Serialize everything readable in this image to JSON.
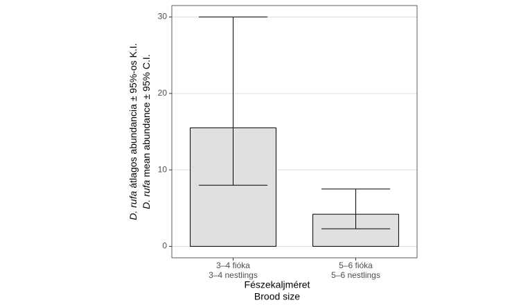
{
  "chart_data": {
    "type": "bar",
    "y_label": [
      [
        "D. rufa",
        "átlagos abundancia ± 95%-os K.I."
      ],
      [
        "D. rufa",
        "mean abundance ± 95% C.I."
      ]
    ],
    "x_label": [
      "Fészekaljméret",
      "Brood size"
    ],
    "categories": [
      [
        "3–4 fióka",
        "3–4 nestlings"
      ],
      [
        "5–6 fióka",
        "5–6 nestlings"
      ]
    ],
    "values": [
      15.5,
      4.2
    ],
    "error_low": [
      8.0,
      2.3
    ],
    "error_high": [
      30,
      7.5
    ],
    "color": "#e0e0e0",
    "ylim": [
      -1.5,
      31.5
    ],
    "yticks": [
      0,
      10,
      20,
      30
    ],
    "grid": true
  }
}
